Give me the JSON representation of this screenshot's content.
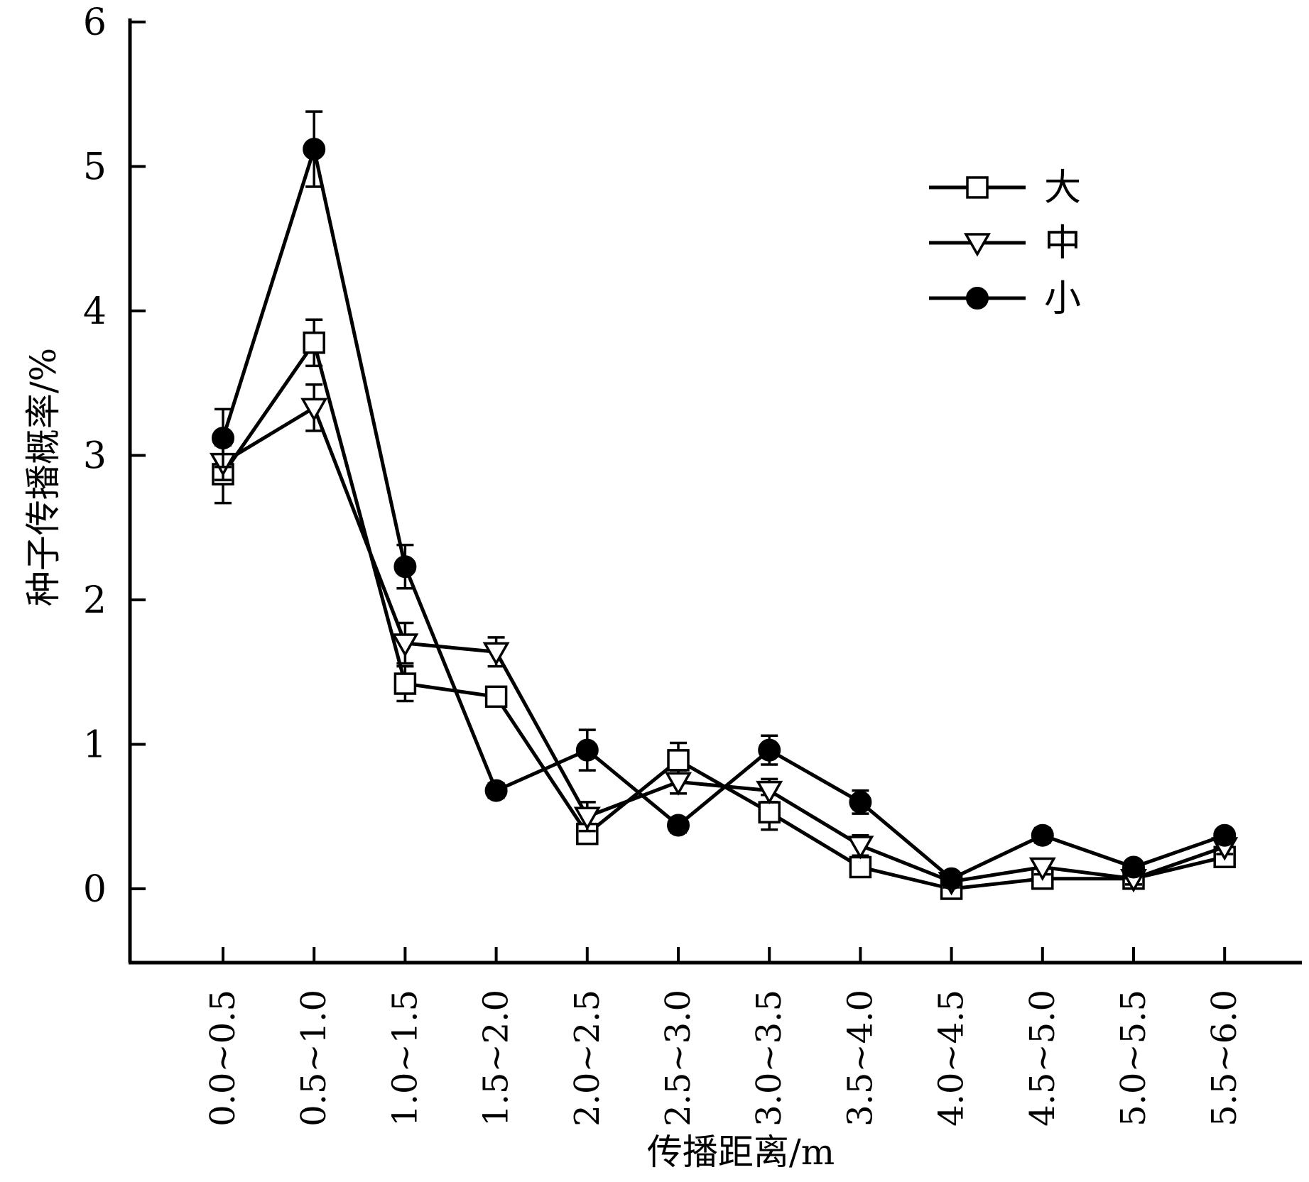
{
  "chart_data": {
    "type": "line",
    "title": "",
    "xlabel": "传播距离/m",
    "ylabel": "种子传播概率/%",
    "ylim": [
      -0.5,
      6
    ],
    "yticks": [
      0,
      1,
      2,
      3,
      4,
      5,
      6
    ],
    "grid": false,
    "legend_position": "top-right",
    "categories": [
      "0.0~0.5",
      "0.5~1.0",
      "1.0~1.5",
      "1.5~2.0",
      "2.0~2.5",
      "2.5~3.0",
      "3.0~3.5",
      "3.5~4.0",
      "4.0~4.5",
      "4.5~5.0",
      "5.0~5.5",
      "5.5~6.0"
    ],
    "series": [
      {
        "name": "大",
        "marker": "square-open",
        "color": "#000000",
        "values": [
          2.87,
          3.78,
          1.42,
          1.33,
          0.38,
          0.89,
          0.53,
          0.15,
          0.0,
          0.07,
          0.07,
          0.22
        ],
        "error": [
          0.2,
          0.16,
          0.12,
          0.06,
          0.05,
          0.12,
          0.12,
          0.05,
          0.03,
          0.04,
          0.03,
          0.04
        ]
      },
      {
        "name": "中",
        "marker": "triangle-down-open",
        "color": "#000000",
        "values": [
          2.95,
          3.33,
          1.7,
          1.64,
          0.5,
          0.74,
          0.68,
          0.3,
          0.05,
          0.15,
          0.07,
          0.29
        ],
        "error": [
          0.12,
          0.16,
          0.14,
          0.1,
          0.1,
          0.08,
          0.08,
          0.07,
          0.04,
          0.05,
          0.04,
          0.05
        ]
      },
      {
        "name": "小",
        "marker": "circle-filled",
        "color": "#000000",
        "values": [
          3.12,
          5.12,
          2.23,
          0.68,
          0.96,
          0.44,
          0.96,
          0.6,
          0.07,
          0.37,
          0.15,
          0.37
        ],
        "error": [
          0.2,
          0.26,
          0.15,
          0.05,
          0.14,
          0.05,
          0.1,
          0.08,
          0.03,
          0.05,
          0.03,
          0.04
        ]
      }
    ]
  }
}
